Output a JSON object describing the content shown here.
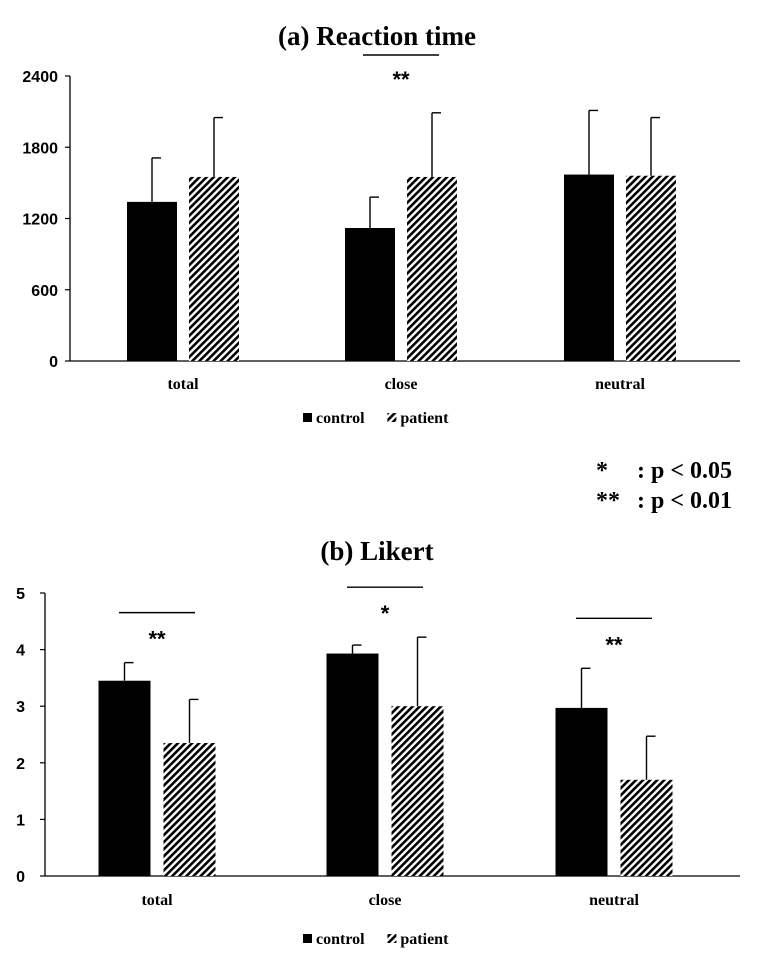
{
  "chart_data": [
    {
      "type": "bar",
      "title": "(a) Reaction time",
      "categories": [
        "total",
        "close",
        "neutral"
      ],
      "ylim": [
        0,
        2400
      ],
      "yticks": [
        "0",
        "600",
        "1200",
        "1800",
        "2400"
      ],
      "grid": false,
      "legend_position": "bottom",
      "series": [
        {
          "name": "control",
          "values": [
            1340,
            1120,
            1570
          ],
          "errors": [
            370,
            260,
            540
          ],
          "color": "#000000",
          "fill": "solid"
        },
        {
          "name": "patient",
          "values": [
            1550,
            1550,
            1560
          ],
          "errors": [
            500,
            540,
            490
          ],
          "color": "#000000",
          "fill": "hatched"
        }
      ],
      "significance": [
        {
          "category": "close",
          "label": "**"
        }
      ]
    },
    {
      "type": "bar",
      "title": "(b) Likert",
      "categories": [
        "total",
        "close",
        "neutral"
      ],
      "ylim": [
        0,
        5
      ],
      "yticks": [
        "0",
        "1",
        "2",
        "3",
        "4",
        "5"
      ],
      "grid": false,
      "legend_position": "bottom",
      "series": [
        {
          "name": "control",
          "values": [
            3.45,
            3.93,
            2.97
          ],
          "errors": [
            0.32,
            0.15,
            0.7
          ],
          "color": "#000000",
          "fill": "solid"
        },
        {
          "name": "patient",
          "values": [
            2.35,
            3.0,
            1.7
          ],
          "errors": [
            0.77,
            1.22,
            0.77
          ],
          "color": "#000000",
          "fill": "hatched"
        }
      ],
      "significance": [
        {
          "category": "total",
          "label": "**"
        },
        {
          "category": "close",
          "label": "*"
        },
        {
          "category": "neutral",
          "label": "**"
        }
      ]
    }
  ],
  "significance_key": [
    {
      "symbol": "*",
      "meaning": ": p < 0.05"
    },
    {
      "symbol": "**",
      "meaning": ": p < 0.01"
    }
  ]
}
